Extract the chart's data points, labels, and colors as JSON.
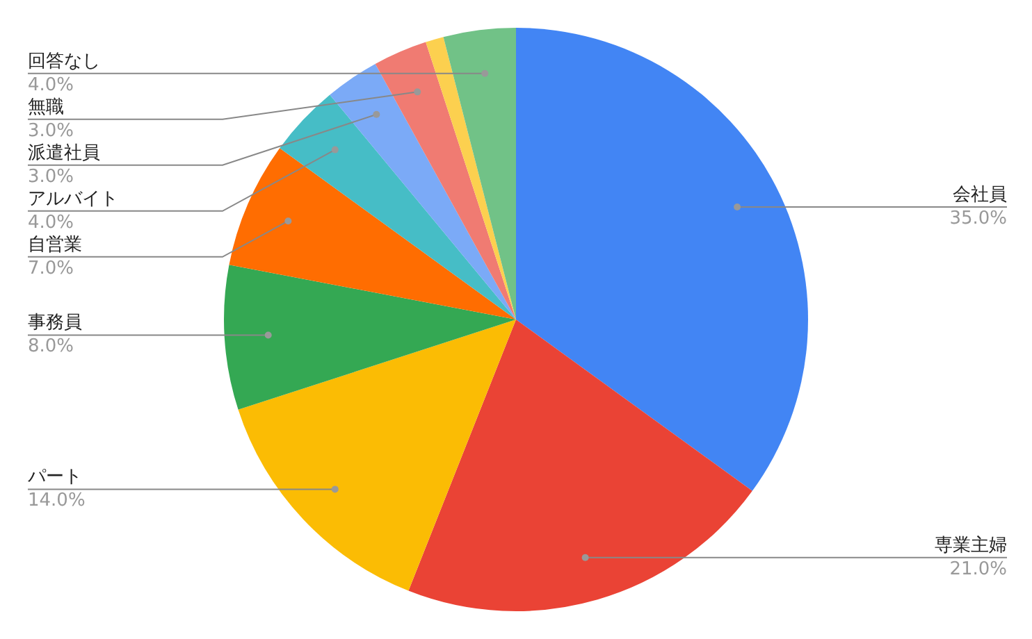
{
  "chart_data": {
    "type": "pie",
    "categories": [
      "会社員",
      "専業主婦",
      "パート",
      "事務員",
      "自営業",
      "アルバイト",
      "派遣社員",
      "無職",
      null,
      "回答なし"
    ],
    "values": [
      35,
      21,
      14,
      8,
      7,
      4,
      3,
      3,
      1,
      4
    ],
    "value_labels": [
      "35.0%",
      "21.0%",
      "14.0%",
      "8.0%",
      "7.0%",
      "4.0%",
      "3.0%",
      "3.0%",
      null,
      "4.0%"
    ],
    "colors": [
      "#4285f4",
      "#ea4335",
      "#fbbc04",
      "#34a853",
      "#ff6d01",
      "#46bdc6",
      "#7baaf7",
      "#f07b72",
      "#fcd04f",
      "#71c287"
    ],
    "legend": false
  }
}
